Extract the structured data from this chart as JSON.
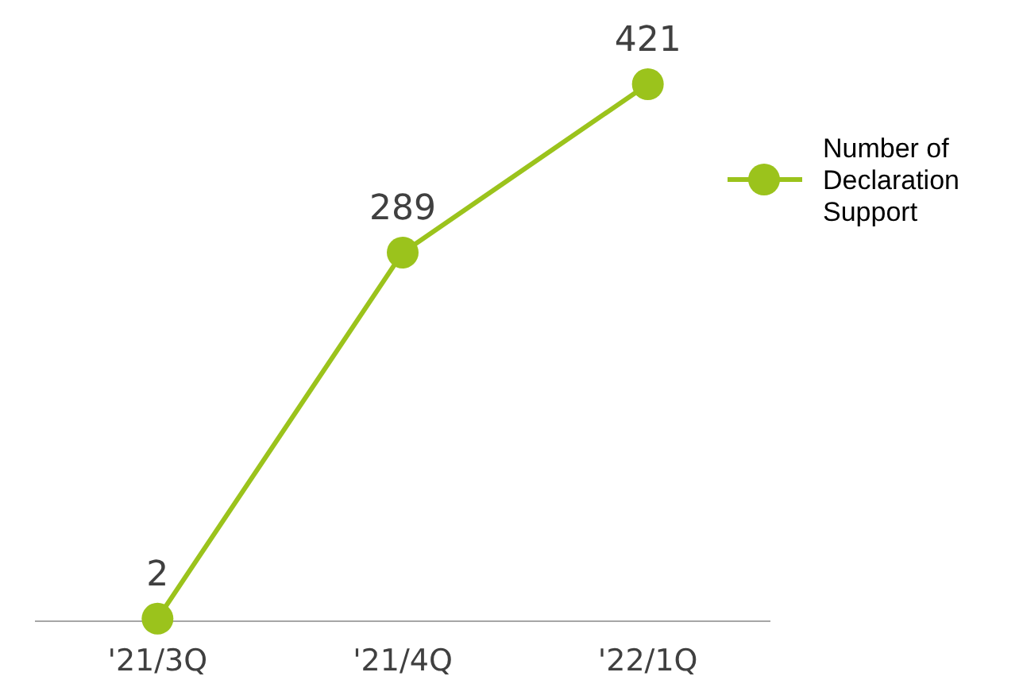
{
  "chart_data": {
    "type": "line",
    "categories": [
      "'21/3Q",
      "'21/4Q",
      "'22/1Q"
    ],
    "series": [
      {
        "name": "Number of Declaration Support",
        "color": "#9bc31c",
        "values": [
          2,
          289,
          421
        ]
      }
    ],
    "data_labels": true,
    "marker": "circle",
    "legend": "right"
  }
}
